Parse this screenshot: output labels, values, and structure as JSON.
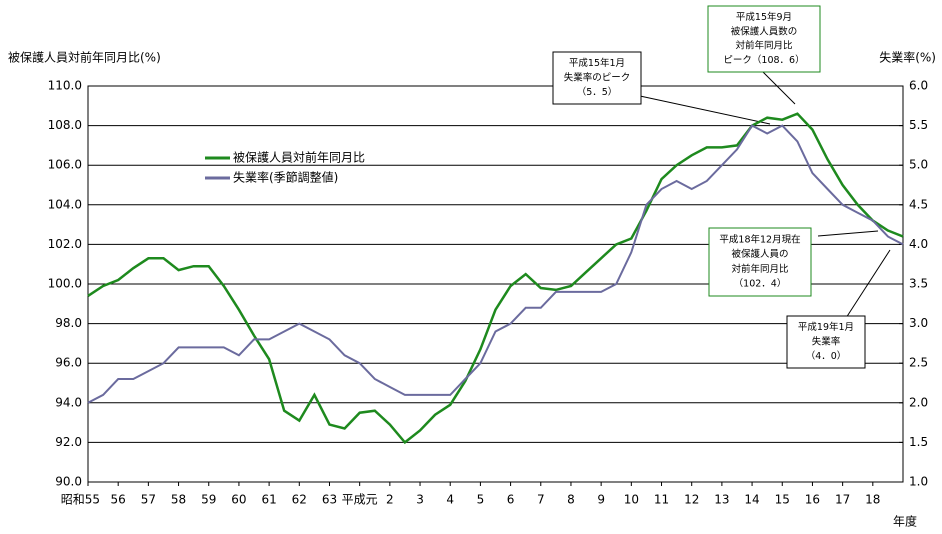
{
  "chart_data": {
    "type": "line",
    "ylabel": "被保護人員対前年同月比(%)",
    "y2label": "失業率(%)",
    "xlabel": "年度",
    "xlim": [
      0,
      27
    ],
    "xticks": [
      {
        "value": 0,
        "label": "昭和55"
      },
      {
        "value": 1,
        "label": "56"
      },
      {
        "value": 2,
        "label": "57"
      },
      {
        "value": 3,
        "label": "58"
      },
      {
        "value": 4,
        "label": "59"
      },
      {
        "value": 5,
        "label": "60"
      },
      {
        "value": 6,
        "label": "61"
      },
      {
        "value": 7,
        "label": "62"
      },
      {
        "value": 8,
        "label": "63"
      },
      {
        "value": 9,
        "label": "平成元"
      },
      {
        "value": 10,
        "label": "2"
      },
      {
        "value": 11,
        "label": "3"
      },
      {
        "value": 12,
        "label": "4"
      },
      {
        "value": 13,
        "label": "5"
      },
      {
        "value": 14,
        "label": "6"
      },
      {
        "value": 15,
        "label": "7"
      },
      {
        "value": 16,
        "label": "8"
      },
      {
        "value": 17,
        "label": "9"
      },
      {
        "value": 18,
        "label": "10"
      },
      {
        "value": 19,
        "label": "11"
      },
      {
        "value": 20,
        "label": "12"
      },
      {
        "value": 21,
        "label": "13"
      },
      {
        "value": 22,
        "label": "14"
      },
      {
        "value": 23,
        "label": "15"
      },
      {
        "value": 24,
        "label": "16"
      },
      {
        "value": 25,
        "label": "17"
      },
      {
        "value": 26,
        "label": "18"
      }
    ],
    "ylim": [
      90,
      110
    ],
    "yticks": [
      {
        "value": 90,
        "label": "90.0"
      },
      {
        "value": 92,
        "label": "92.0"
      },
      {
        "value": 94,
        "label": "94.0"
      },
      {
        "value": 96,
        "label": "96.0"
      },
      {
        "value": 98,
        "label": "98.0"
      },
      {
        "value": 100,
        "label": "100.0"
      },
      {
        "value": 102,
        "label": "102.0"
      },
      {
        "value": 104,
        "label": "104.0"
      },
      {
        "value": 106,
        "label": "106.0"
      },
      {
        "value": 108,
        "label": "108.0"
      },
      {
        "value": 110,
        "label": "110.0"
      }
    ],
    "y2lim": [
      1,
      6
    ],
    "y2ticks": [
      {
        "value": 1,
        "label": "1.0"
      },
      {
        "value": 1.5,
        "label": "1.5"
      },
      {
        "value": 2,
        "label": "2.0"
      },
      {
        "value": 2.5,
        "label": "2.5"
      },
      {
        "value": 3,
        "label": "3.0"
      },
      {
        "value": 3.5,
        "label": "3.5"
      },
      {
        "value": 4,
        "label": "4.0"
      },
      {
        "value": 4.5,
        "label": "4.5"
      },
      {
        "value": 5,
        "label": "5.0"
      },
      {
        "value": 5.5,
        "label": "5.5"
      },
      {
        "value": 6,
        "label": "6.0"
      }
    ],
    "grid": true,
    "x": [
      0,
      0.5,
      1,
      1.5,
      2,
      2.5,
      3,
      3.5,
      4,
      4.5,
      5,
      5.5,
      6,
      6.5,
      7,
      7.5,
      8,
      8.5,
      9,
      9.5,
      10,
      10.5,
      11,
      11.5,
      12,
      12.5,
      13,
      13.5,
      14,
      14.5,
      15,
      15.5,
      16,
      16.5,
      17,
      17.5,
      18,
      18.5,
      19,
      19.5,
      20,
      20.5,
      21,
      21.5,
      22,
      22.5,
      23,
      23.5,
      24,
      24.5,
      25,
      25.5,
      26,
      26.5,
      27
    ],
    "series": [
      {
        "name": "被保護人員対前年同月比",
        "color": "#1e8a1e",
        "values": [
          99.4,
          99.9,
          100.2,
          100.8,
          101.3,
          101.3,
          100.7,
          100.9,
          100.9,
          99.9,
          98.7,
          97.4,
          96.2,
          93.6,
          93.1,
          94.4,
          92.9,
          92.7,
          93.5,
          93.6,
          92.9,
          92.0,
          92.6,
          93.4,
          93.9,
          95.1,
          96.7,
          98.7,
          99.9,
          100.5,
          99.8,
          99.7,
          99.9,
          100.6,
          101.3,
          102.0,
          102.3,
          103.7,
          105.3,
          106.0,
          106.5,
          106.9,
          106.9,
          107.0,
          108.0,
          108.4,
          108.3,
          108.6,
          107.8,
          106.3,
          105.0,
          104.0,
          103.2,
          102.7,
          102.4
        ]
      },
      {
        "name": "失業率(季節調整値)",
        "color": "#6b6b9e",
        "axis": "y2",
        "values": [
          2.0,
          2.1,
          2.3,
          2.3,
          2.4,
          2.5,
          2.7,
          2.7,
          2.7,
          2.7,
          2.6,
          2.8,
          2.8,
          2.9,
          3.0,
          2.9,
          2.8,
          2.6,
          2.5,
          2.3,
          2.2,
          2.1,
          2.1,
          2.1,
          2.1,
          2.3,
          2.5,
          2.9,
          3.0,
          3.2,
          3.2,
          3.4,
          3.4,
          3.4,
          3.4,
          3.5,
          3.9,
          4.5,
          4.7,
          4.8,
          4.7,
          4.8,
          5.0,
          5.2,
          5.5,
          5.4,
          5.5,
          5.3,
          4.9,
          4.7,
          4.5,
          4.4,
          4.3,
          4.1,
          4.0
        ]
      }
    ],
    "annotations": [
      [
        "平成15年9月",
        "被保護人員数の",
        "対前年同月比",
        "ピーク（108．6）"
      ],
      [
        "平成15年1月",
        "失業率のピーク",
        "（5．5）"
      ],
      [
        "平成18年12月現在",
        "被保護人員の",
        "対前年同月比",
        "（102．4）"
      ],
      [
        "平成19年1月",
        "失業率",
        "（4．0）"
      ]
    ]
  }
}
